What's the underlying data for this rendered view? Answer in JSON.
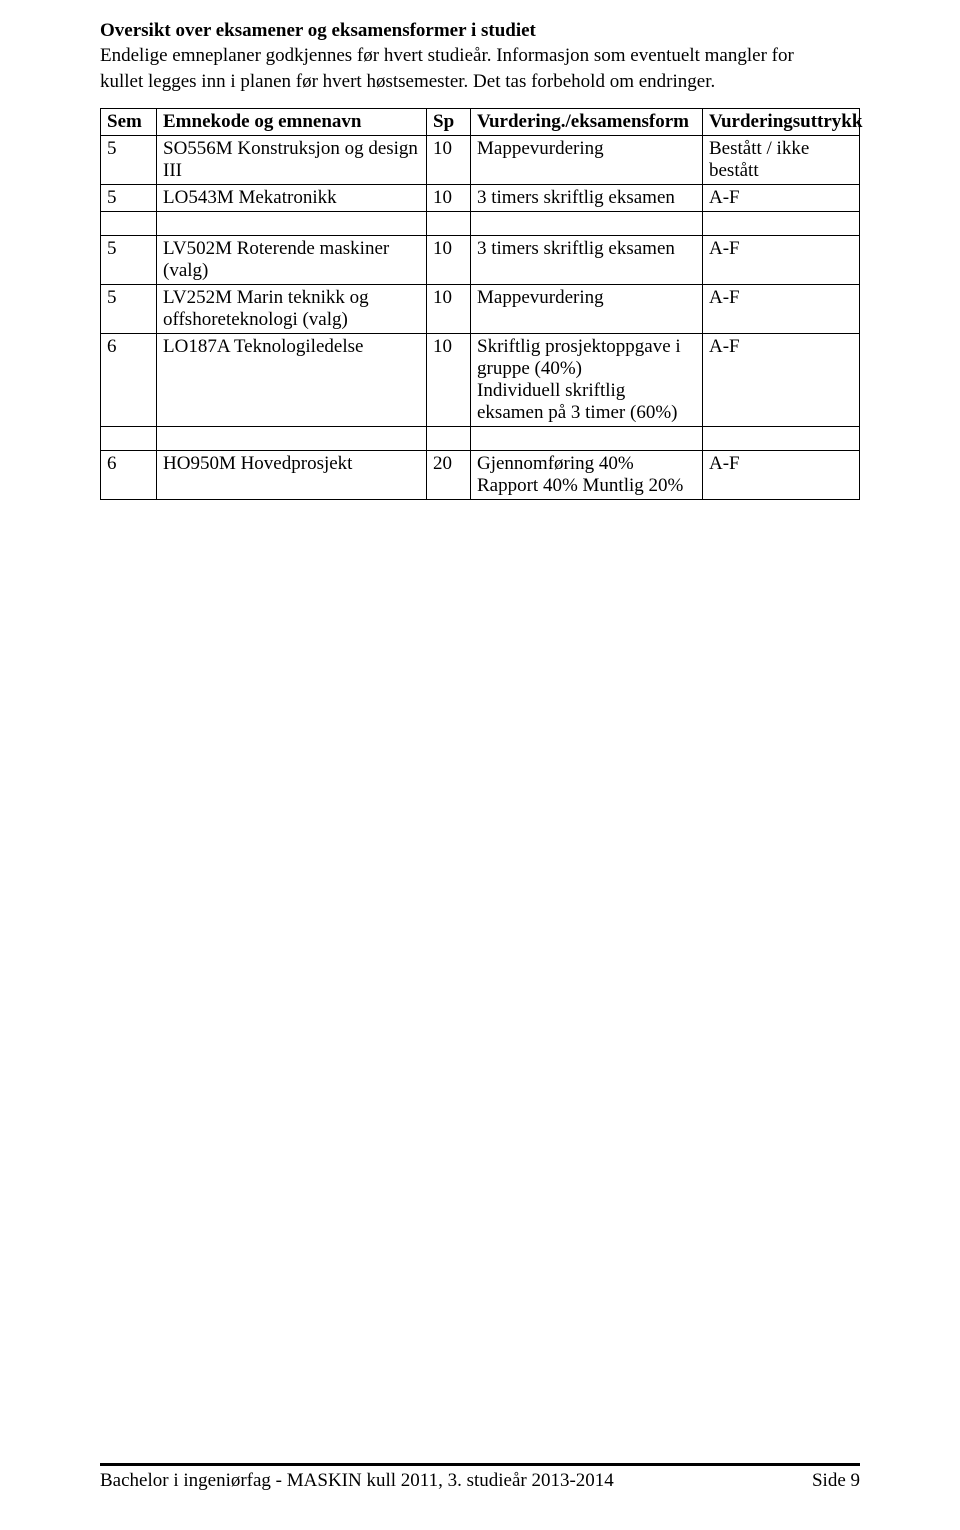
{
  "title": "Oversikt over eksamener og eksamensformer i studiet",
  "intro_line1": "Endelige emneplaner godkjennes før hvert studieår. Informasjon som eventuelt mangler for",
  "intro_line2": "kullet legges inn i planen før hvert høstsemester. Det tas forbehold om endringer.",
  "headers": {
    "sem": "Sem",
    "name": "Emnekode og emnenavn",
    "sp": "Sp",
    "form": "Vurdering./eksamensform",
    "expr": "Vurderingsuttrykk"
  },
  "rows": [
    {
      "sem": "5",
      "name": "SO556M Konstruksjon og design III",
      "sp": "10",
      "form": "Mappevurdering",
      "expr": "Bestått / ikke bestått"
    },
    {
      "sem": "5",
      "name": "LO543M Mekatronikk",
      "sp": "10",
      "form": "3 timers skriftlig eksamen",
      "expr": "A-F"
    },
    {
      "spacer": true
    },
    {
      "sem": "5",
      "name": "LV502M Roterende maskiner (valg)",
      "sp": "10",
      "form": "3 timers skriftlig eksamen",
      "expr": "A-F"
    },
    {
      "sem": "5",
      "name": "LV252M Marin teknikk og offshoreteknologi (valg)",
      "sp": "10",
      "form": "Mappevurdering",
      "expr": "A-F"
    },
    {
      "sem": "6",
      "name": "LO187A Teknologiledelse",
      "sp": "10",
      "form": "Skriftlig prosjektoppgave i gruppe (40%)\nIndividuell skriftlig eksamen på 3 timer (60%)",
      "expr": "A-F"
    },
    {
      "spacer": true
    },
    {
      "sem": "6",
      "name": "HO950M Hovedprosjekt",
      "sp": "20",
      "form": "Gjennomføring 40%\nRapport 40% Muntlig 20%",
      "expr": "A-F"
    }
  ],
  "footer_left": "Bachelor i ingeniørfag - MASKIN kull 2011, 3. studieår 2013-2014",
  "footer_right": "Side 9"
}
